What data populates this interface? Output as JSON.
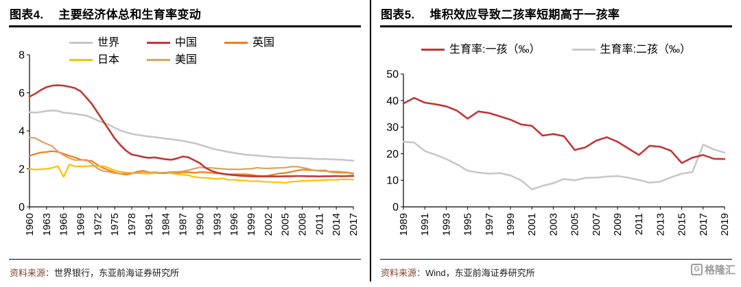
{
  "charts": [
    {
      "fig_label": "图表4.",
      "title": "主要经济体总和生育率变动",
      "source_label": "资料来源：",
      "source_text": "世界银行，东亚前海证券研究所"
    },
    {
      "fig_label": "图表5.",
      "title": "堆积效应导致二孩率短期高于一孩率",
      "source_label": "资料来源：",
      "source_text": "Wind，东亚前海证券研究所"
    }
  ],
  "logo": {
    "icon_letter": "G",
    "text": "格隆汇"
  },
  "chart_data": [
    {
      "type": "line",
      "title": "主要经济体总和生育率变动",
      "xlabel": "",
      "ylabel": "",
      "ylim": [
        0,
        8
      ],
      "yticks": [
        0,
        2,
        4,
        6,
        8
      ],
      "grid": false,
      "legend_position": "top",
      "x": [
        1960,
        1961,
        1962,
        1963,
        1964,
        1965,
        1966,
        1967,
        1968,
        1969,
        1970,
        1971,
        1972,
        1973,
        1974,
        1975,
        1976,
        1977,
        1978,
        1979,
        1980,
        1981,
        1982,
        1983,
        1984,
        1985,
        1986,
        1987,
        1988,
        1989,
        1990,
        1991,
        1992,
        1993,
        1994,
        1995,
        1996,
        1997,
        1998,
        1999,
        2000,
        2001,
        2002,
        2003,
        2004,
        2005,
        2006,
        2007,
        2008,
        2009,
        2010,
        2011,
        2012,
        2013,
        2014,
        2015,
        2016,
        2017
      ],
      "xtick_labels": [
        "1960",
        "1963",
        "1966",
        "1969",
        "1972",
        "1975",
        "1978",
        "1981",
        "1984",
        "1987",
        "1990",
        "1993",
        "1996",
        "1999",
        "2002",
        "2005",
        "2008",
        "2011",
        "2014",
        "2017"
      ],
      "draw_order": [
        0,
        2,
        3,
        4,
        1
      ],
      "series": [
        {
          "name": "世界",
          "color": "#c6c6c6",
          "stroke_width": 2.6,
          "values": [
            4.98,
            4.96,
            4.99,
            5.04,
            5.07,
            5.05,
            4.95,
            4.93,
            4.89,
            4.85,
            4.8,
            4.68,
            4.54,
            4.43,
            4.32,
            4.16,
            4.02,
            3.92,
            3.84,
            3.79,
            3.74,
            3.7,
            3.67,
            3.63,
            3.59,
            3.56,
            3.51,
            3.47,
            3.41,
            3.35,
            3.27,
            3.17,
            3.08,
            3.01,
            2.95,
            2.89,
            2.84,
            2.79,
            2.75,
            2.72,
            2.7,
            2.67,
            2.65,
            2.62,
            2.61,
            2.59,
            2.57,
            2.57,
            2.56,
            2.55,
            2.53,
            2.51,
            2.52,
            2.5,
            2.49,
            2.48,
            2.45,
            2.43
          ]
        },
        {
          "name": "中国",
          "color": "#c23532",
          "stroke_width": 2.6,
          "values": [
            5.8,
            5.95,
            6.15,
            6.3,
            6.38,
            6.4,
            6.38,
            6.32,
            6.25,
            6.08,
            5.75,
            5.4,
            4.95,
            4.5,
            4.05,
            3.6,
            3.25,
            2.95,
            2.75,
            2.7,
            2.62,
            2.58,
            2.6,
            2.55,
            2.5,
            2.48,
            2.55,
            2.65,
            2.6,
            2.45,
            2.3,
            2.05,
            1.9,
            1.8,
            1.74,
            1.7,
            1.67,
            1.64,
            1.62,
            1.61,
            1.6,
            1.6,
            1.6,
            1.6,
            1.6,
            1.61,
            1.61,
            1.62,
            1.62,
            1.61,
            1.61,
            1.6,
            1.61,
            1.61,
            1.62,
            1.61,
            1.62,
            1.63
          ]
        },
        {
          "name": "英国",
          "color": "#ef7d15",
          "stroke_width": 2.2,
          "values": [
            2.69,
            2.78,
            2.86,
            2.89,
            2.93,
            2.89,
            2.79,
            2.69,
            2.6,
            2.49,
            2.44,
            2.41,
            2.2,
            2.04,
            1.92,
            1.81,
            1.74,
            1.69,
            1.75,
            1.86,
            1.9,
            1.82,
            1.78,
            1.77,
            1.77,
            1.79,
            1.78,
            1.82,
            1.82,
            1.79,
            1.83,
            1.82,
            1.79,
            1.76,
            1.74,
            1.71,
            1.72,
            1.72,
            1.71,
            1.68,
            1.64,
            1.63,
            1.64,
            1.7,
            1.76,
            1.78,
            1.84,
            1.9,
            1.96,
            1.94,
            1.92,
            1.91,
            1.92,
            1.83,
            1.81,
            1.8,
            1.79,
            1.74
          ]
        },
        {
          "name": "日本",
          "color": "#ffc000",
          "stroke_width": 2.2,
          "values": [
            2.0,
            1.96,
            1.98,
            2.0,
            2.05,
            2.14,
            1.58,
            2.23,
            2.13,
            2.13,
            2.13,
            2.16,
            2.14,
            2.14,
            2.05,
            1.91,
            1.85,
            1.8,
            1.79,
            1.77,
            1.75,
            1.74,
            1.77,
            1.8,
            1.81,
            1.76,
            1.72,
            1.69,
            1.66,
            1.57,
            1.54,
            1.53,
            1.5,
            1.46,
            1.5,
            1.42,
            1.43,
            1.39,
            1.38,
            1.34,
            1.36,
            1.33,
            1.32,
            1.29,
            1.29,
            1.26,
            1.32,
            1.34,
            1.37,
            1.37,
            1.39,
            1.39,
            1.41,
            1.43,
            1.42,
            1.45,
            1.44,
            1.43
          ]
        },
        {
          "name": "美国",
          "color": "#dfa05e",
          "stroke_width": 2.2,
          "values": [
            3.65,
            3.62,
            3.46,
            3.32,
            3.19,
            2.91,
            2.72,
            2.56,
            2.46,
            2.46,
            2.48,
            2.27,
            2.01,
            1.88,
            1.84,
            1.77,
            1.74,
            1.79,
            1.76,
            1.81,
            1.84,
            1.81,
            1.83,
            1.8,
            1.81,
            1.84,
            1.84,
            1.87,
            1.93,
            2.01,
            2.08,
            2.06,
            2.05,
            2.02,
            2.0,
            1.98,
            1.98,
            1.97,
            2.0,
            2.0,
            2.06,
            2.03,
            2.02,
            2.04,
            2.05,
            2.06,
            2.11,
            2.12,
            2.07,
            2.0,
            1.93,
            1.89,
            1.88,
            1.86,
            1.86,
            1.84,
            1.82,
            1.77
          ]
        }
      ]
    },
    {
      "type": "line",
      "title": "堆积效应导致二孩率短期高于一孩率",
      "xlabel": "",
      "ylabel": "",
      "ylim": [
        0,
        50
      ],
      "yticks": [
        0,
        10,
        20,
        30,
        40,
        50
      ],
      "grid": false,
      "legend_position": "top",
      "x": [
        1989,
        1990,
        1991,
        1992,
        1993,
        1994,
        1995,
        1996,
        1997,
        1998,
        1999,
        2000,
        2001,
        2002,
        2003,
        2004,
        2005,
        2006,
        2007,
        2008,
        2009,
        2010,
        2011,
        2012,
        2013,
        2014,
        2015,
        2016,
        2017,
        2018,
        2019
      ],
      "xtick_labels": [
        "1989",
        "1991",
        "1993",
        "1995",
        "1997",
        "1999",
        "2001",
        "2003",
        "2005",
        "2007",
        "2009",
        "2011",
        "2013",
        "2015",
        "2017",
        "2019"
      ],
      "draw_order": [
        1,
        0
      ],
      "series": [
        {
          "name": "生育率:一孩（‰）",
          "color": "#c23532",
          "stroke_width": 2.6,
          "values": [
            38.9,
            41.0,
            39.2,
            38.6,
            37.8,
            36.2,
            33.2,
            35.9,
            35.3,
            34.1,
            32.8,
            31.0,
            30.5,
            26.8,
            27.4,
            26.6,
            21.4,
            22.4,
            24.9,
            26.2,
            24.5,
            22.0,
            19.5,
            23.0,
            22.6,
            21.1,
            16.5,
            18.5,
            19.5,
            18.1,
            18.0
          ]
        },
        {
          "name": "生育率:二孩（‰）",
          "color": "#c8c8c8",
          "stroke_width": 2.6,
          "values": [
            24.5,
            24.2,
            21.0,
            19.6,
            18.0,
            16.0,
            13.6,
            12.9,
            12.5,
            12.7,
            11.8,
            10.0,
            6.6,
            7.9,
            8.9,
            10.5,
            10.0,
            10.9,
            11.0,
            11.4,
            11.6,
            11.0,
            10.1,
            9.1,
            9.5,
            11.1,
            12.5,
            13.1,
            23.4,
            21.6,
            20.4
          ]
        }
      ]
    }
  ]
}
